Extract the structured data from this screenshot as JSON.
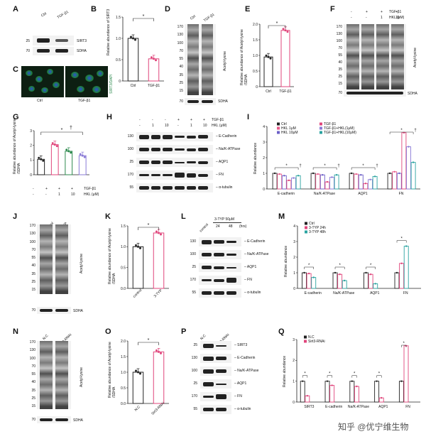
{
  "panels": {
    "A": {
      "label": "A",
      "lanes": [
        "Ctrl",
        "TGF-β1"
      ],
      "mw": [
        "25",
        "70"
      ],
      "proteins": [
        "SIRT3",
        "SDHA"
      ]
    },
    "B": {
      "label": "B",
      "ylabel": "Relative abundance of SIRT3",
      "yticks": [
        "0",
        "0.5",
        "1.0",
        "1.5"
      ],
      "xlabels": [
        "Ctrl",
        "TGF-β1"
      ],
      "sig": "*"
    },
    "C": {
      "label": "C",
      "stain": "SIRT3/DAPI",
      "xlabels": [
        "Ctrl",
        "TGF-β1"
      ]
    },
    "D": {
      "label": "D",
      "lanes": [
        "Ctrl",
        "TGF-β1"
      ],
      "mw": [
        "170",
        "130",
        "100",
        "70",
        "55",
        "40",
        "35",
        "25",
        "15"
      ],
      "mw2": [
        "70"
      ],
      "annot": "Acetyl-lysine",
      "loading": "SDHA"
    },
    "E": {
      "label": "E",
      "ylabel": "Relative abundance of Acetyl-lysine /SDHA",
      "yticks": [
        "0",
        "0.5",
        "1.0",
        "1.5",
        "2.0"
      ],
      "xlabels": [
        "Ctrl",
        "TGF-β1"
      ],
      "sig": "*"
    },
    "F": {
      "label": "F",
      "tgf": [
        "-",
        "+",
        "+",
        "+"
      ],
      "hkl": [
        "-",
        "-",
        "1",
        "10"
      ],
      "tgf_label": "TGF-β1",
      "hkl_label": "HKL (μM)",
      "mw": [
        "170",
        "130",
        "100",
        "70",
        "55",
        "40",
        "35",
        "25",
        "15"
      ],
      "mw2": [
        "70"
      ],
      "annot": "Acetyl-lysine",
      "loading": "SDHA"
    },
    "G": {
      "label": "G",
      "ylabel": "Relative abundance of Acetyl-lysine /SDHA",
      "yticks": [
        "0",
        "1",
        "2",
        "3"
      ],
      "tgf": [
        "-",
        "+",
        "+",
        "+"
      ],
      "hkl": [
        "-",
        "-",
        "1",
        "10"
      ],
      "tgf_label": "TGF-β1",
      "hkl_label": "HKL (μM)",
      "sig": [
        "*",
        "†"
      ]
    },
    "H": {
      "label": "H",
      "tgf": [
        "-",
        "-",
        "-",
        "+",
        "+",
        "+"
      ],
      "hkl": [
        "-",
        "1",
        "10",
        "-",
        "1",
        "10"
      ],
      "tgf_label": "TGF-β1",
      "hkl_label": "HKL (μM)",
      "mw": [
        "130",
        "100",
        "25",
        "170",
        "55"
      ],
      "proteins": [
        "E-Cadherin",
        "Na/K-ATPase",
        "AQP1",
        "FN",
        "α-tubulin"
      ]
    },
    "I": {
      "label": "I",
      "ylabel": "Relative abundance",
      "yticks": [
        "0",
        "1",
        "2",
        "3",
        "4"
      ],
      "legend": [
        "Ctrl",
        "TGF-β1",
        "HKL 1μM",
        "TGF-β1+HKL(1μM)",
        "HKL 10μM",
        "TGF-β1+HKL(10μM)"
      ],
      "groups": [
        "E-cadherin",
        "Na/K-ATPase",
        "AQP1",
        "FN"
      ],
      "sig": [
        "*",
        "†"
      ]
    },
    "J": {
      "label": "J",
      "lanes": [
        "control",
        "3-TYP"
      ],
      "mw": [
        "170",
        "130",
        "100",
        "70",
        "55",
        "40",
        "35",
        "25",
        "15"
      ],
      "mw2": [
        "70"
      ],
      "annot": "Acetyl-lysine",
      "loading": "SDHA"
    },
    "K": {
      "label": "K",
      "ylabel": "Relative abundance of Acetyl-lysine /SDHA",
      "yticks": [
        "0.0",
        "0.5",
        "1.0",
        "1.5"
      ],
      "xlabels": [
        "control",
        "3-TYP"
      ],
      "sig": "*"
    },
    "L": {
      "label": "L",
      "lanes": [
        "control",
        "24",
        "48"
      ],
      "header": "3-TYP 50μM",
      "unit": "(hrs)",
      "mw": [
        "130",
        "100",
        "25",
        "170",
        "55"
      ],
      "proteins": [
        "E-Cadherin",
        "Na/K-ATPase",
        "AQP1",
        "FN",
        "α-tubulin"
      ]
    },
    "M": {
      "label": "M",
      "ylabel": "Relative abundance",
      "yticks": [
        "0",
        "1",
        "2",
        "3",
        "4"
      ],
      "legend": [
        "Ctrl",
        "3-TYP 24h",
        "3-TYP 48h"
      ],
      "groups": [
        "E-cadherin",
        "Na/K-ATPase",
        "AQP1",
        "FN"
      ],
      "sig": "*"
    },
    "N": {
      "label": "N",
      "lanes": [
        "N.C",
        "Sirt3-RNAi"
      ],
      "mw": [
        "170",
        "130",
        "100",
        "70",
        "55",
        "40",
        "35",
        "25",
        "15"
      ],
      "mw2": [
        "70"
      ],
      "annot": "Acetyl-lysine",
      "loading": "SDHA"
    },
    "O": {
      "label": "O",
      "ylabel": "Relative abundance of Acetyl-lysine /SDHA",
      "yticks": [
        "0.0",
        "0.5",
        "1.0",
        "1.5",
        "2.0"
      ],
      "xlabels": [
        "N.C",
        "Sirt3-RNAi"
      ],
      "sig": "*"
    },
    "P": {
      "label": "P",
      "lanes": [
        "N.C",
        "Sirt3-RNAi"
      ],
      "mw": [
        "25",
        "130",
        "100",
        "25",
        "170",
        "55"
      ],
      "proteins": [
        "SIRT3",
        "E-Cadherin",
        "Na/K-ATPase",
        "AQP1",
        "FN",
        "α-tubulin"
      ]
    },
    "Q": {
      "label": "Q",
      "ylabel": "Relative abundance",
      "yticks": [
        "0",
        "1",
        "2",
        "3"
      ],
      "legend": [
        "N.C",
        "Sirt3-RNAi"
      ],
      "groups": [
        "SIRT3",
        "E-cadherin",
        "Na/K-ATPase",
        "AQP1",
        "FN"
      ],
      "sig": "*"
    }
  },
  "colors": {
    "ctrl": "#222222",
    "pink": "#e0457b",
    "purple": "#8a7bd6",
    "teal": "#2aa3a0",
    "green": "#2d8a4e"
  },
  "watermark": "知乎 @优宁维生物",
  "chart_data": [
    {
      "type": "bar",
      "title": "B",
      "categories": [
        "Ctrl",
        "TGF-β1"
      ],
      "values": [
        1.0,
        0.52
      ],
      "ylabel": "Relative abundance of SIRT3",
      "ylim": [
        0,
        1.5
      ]
    },
    {
      "type": "bar",
      "title": "E",
      "categories": [
        "Ctrl",
        "TGF-β1"
      ],
      "values": [
        0.95,
        1.8
      ],
      "ylabel": "Relative abundance of Acetyl-lysine /SDHA",
      "ylim": [
        0,
        2.0
      ]
    },
    {
      "type": "bar",
      "title": "G",
      "categories": [
        "Ctrl",
        "TGF-β1",
        "TGF-β1+HKL 1",
        "TGF-β1+HKL 10"
      ],
      "values": [
        1.05,
        2.05,
        1.6,
        1.3
      ],
      "ylim": [
        0,
        3
      ]
    },
    {
      "type": "bar",
      "title": "I",
      "categories": [
        "E-cadherin",
        "Na/K-ATPase",
        "AQP1",
        "FN"
      ],
      "series": [
        {
          "name": "Ctrl",
          "values": [
            1.0,
            1.0,
            1.0,
            1.0
          ]
        },
        {
          "name": "HKL 1μM",
          "values": [
            0.95,
            0.95,
            0.95,
            1.1
          ]
        },
        {
          "name": "HKL 10μM",
          "values": [
            0.85,
            0.9,
            0.9,
            1.0
          ]
        },
        {
          "name": "TGF-β1",
          "values": [
            0.55,
            0.45,
            0.35,
            3.6
          ]
        },
        {
          "name": "TGF-β1+HKL(1μM)",
          "values": [
            0.7,
            0.75,
            0.6,
            2.7
          ]
        },
        {
          "name": "TGF-β1+HKL(10μM)",
          "values": [
            0.85,
            0.9,
            0.8,
            1.7
          ]
        }
      ],
      "ylim": [
        0,
        4
      ]
    },
    {
      "type": "bar",
      "title": "K",
      "categories": [
        "control",
        "3-TYP"
      ],
      "values": [
        1.0,
        1.33
      ],
      "ylim": [
        0,
        1.5
      ]
    },
    {
      "type": "bar",
      "title": "M",
      "categories": [
        "E-cadherin",
        "Na/K-ATPase",
        "AQP1",
        "FN"
      ],
      "series": [
        {
          "name": "Ctrl",
          "values": [
            1.0,
            1.0,
            1.0,
            1.0
          ]
        },
        {
          "name": "3-TYP 24h",
          "values": [
            0.95,
            0.9,
            0.9,
            1.6
          ]
        },
        {
          "name": "3-TYP 48h",
          "values": [
            0.7,
            0.5,
            0.3,
            2.7
          ]
        }
      ],
      "ylim": [
        0,
        4
      ]
    },
    {
      "type": "bar",
      "title": "O",
      "categories": [
        "N.C",
        "Sirt3-RNAi"
      ],
      "values": [
        1.0,
        1.65
      ],
      "ylim": [
        0,
        2.0
      ]
    },
    {
      "type": "bar",
      "title": "Q",
      "categories": [
        "SIRT3",
        "E-cadherin",
        "Na/K-ATPase",
        "AQP1",
        "FN"
      ],
      "series": [
        {
          "name": "N.C",
          "values": [
            1.0,
            1.0,
            1.0,
            1.0,
            1.0
          ]
        },
        {
          "name": "Sirt3-RNAi",
          "values": [
            0.3,
            0.8,
            0.75,
            0.2,
            2.7
          ]
        }
      ],
      "ylim": [
        0,
        3
      ]
    }
  ]
}
